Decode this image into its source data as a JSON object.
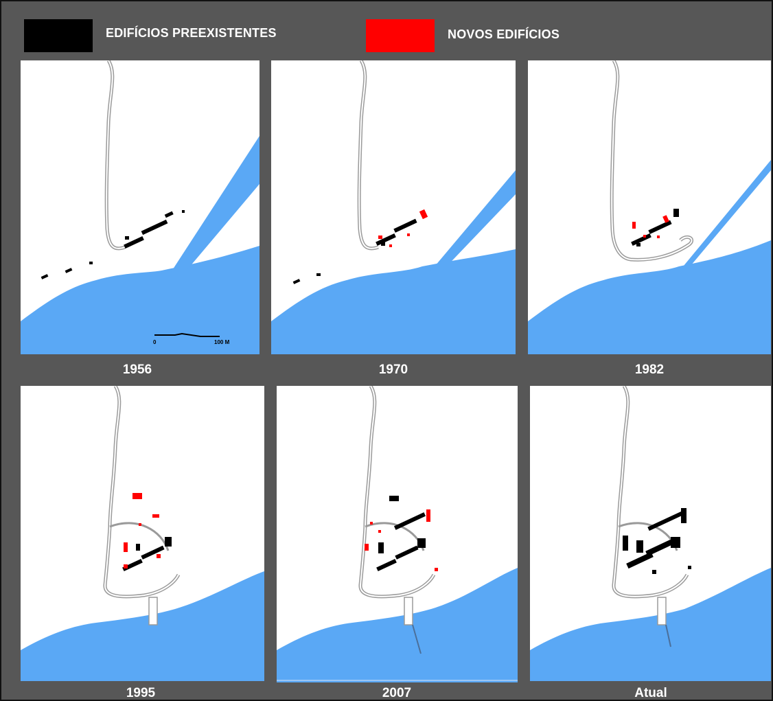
{
  "legend": {
    "existing": {
      "label": "EDIFÍCIOS PREEXISTENTES",
      "color": "#000000"
    },
    "new": {
      "label": "NOVOS EDIFÍCIOS",
      "color": "#ff0000"
    }
  },
  "colors": {
    "frame": "#575757",
    "water": "#5aa8f5",
    "road": "#9a9a9a"
  },
  "scale_bar": {
    "start_label": "0",
    "end_label": "100 M"
  },
  "maps": [
    {
      "year": "1956"
    },
    {
      "year": "1970"
    },
    {
      "year": "1982"
    },
    {
      "year": "1995"
    },
    {
      "year": "2007"
    },
    {
      "year": "Atual"
    }
  ]
}
